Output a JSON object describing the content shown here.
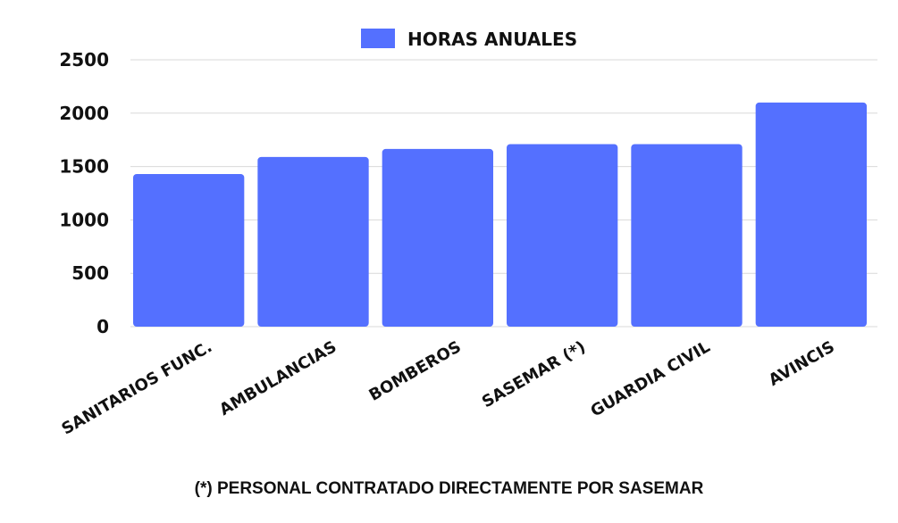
{
  "chart_data": {
    "type": "bar",
    "categories": [
      "SANITARIOS FUNC.",
      "AMBULANCIAS",
      "BOMBEROS",
      "SASEMAR (*)",
      "GUARDIA CIVIL",
      "AVINCIS"
    ],
    "series": [
      {
        "name": "HORAS ANUALES",
        "values": [
          1430,
          1590,
          1665,
          1710,
          1710,
          2100
        ],
        "color": "#5470ff"
      }
    ],
    "ylim": [
      0,
      2500
    ],
    "yticks": [
      0,
      500,
      1000,
      1500,
      2000,
      2500
    ],
    "grid": true,
    "legend_position": "top-center"
  },
  "footnote": "(*) PERSONAL CONTRATADO DIRECTAMENTE POR SASEMAR"
}
